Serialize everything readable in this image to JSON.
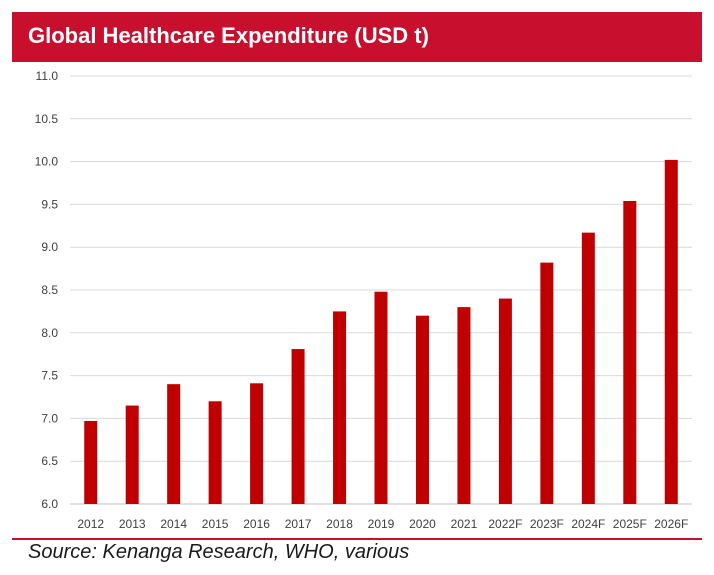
{
  "header": {
    "title": "Global Healthcare Expenditure (USD t)"
  },
  "footer": {
    "source": "Source: Kenanga Research, WHO, various"
  },
  "colors": {
    "accent": "#c8102e",
    "bar": "#c00000",
    "grid": "#d9d9d9"
  },
  "chart_data": {
    "type": "bar",
    "title": "Global Healthcare Expenditure (USD t)",
    "xlabel": "",
    "ylabel": "",
    "ylim": [
      6.0,
      11.0
    ],
    "ytick_step": 0.5,
    "grid": true,
    "categories": [
      "2012",
      "2013",
      "2014",
      "2015",
      "2016",
      "2017",
      "2018",
      "2019",
      "2020",
      "2021",
      "2022F",
      "2023F",
      "2024F",
      "2025F",
      "2026F"
    ],
    "values": [
      6.97,
      7.15,
      7.4,
      7.2,
      7.41,
      7.81,
      8.25,
      8.48,
      8.2,
      8.3,
      8.4,
      8.82,
      9.17,
      9.54,
      10.02
    ]
  }
}
